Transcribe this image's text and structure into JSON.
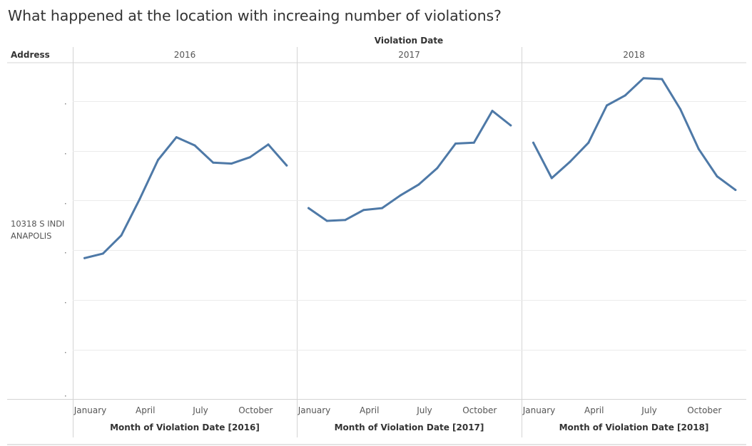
{
  "title": "What happened at the location with increaing number of violations?",
  "column_header": "Violation Date",
  "row_header": "Address",
  "row_label_lines": [
    "10318 S INDI",
    "ANAPOLIS"
  ],
  "colors": {
    "line": "#4e79a7",
    "grid": "#ebebeb",
    "divider": "#d4d4d4",
    "text": "#333333"
  },
  "chart_data": [
    {
      "type": "line",
      "panel": "2016",
      "xlabel": "Month of Violation Date [2016]",
      "tick_labels": [
        "January",
        "April",
        "July",
        "October"
      ],
      "tick_months": [
        1,
        4,
        7,
        10
      ],
      "x": [
        1,
        2,
        3,
        4,
        5,
        6,
        7,
        8,
        9,
        10,
        11,
        12
      ],
      "values": [
        29.5,
        30.0,
        32.0,
        36.0,
        40.3,
        42.8,
        41.9,
        40.0,
        39.9,
        40.6,
        42.0,
        39.7
      ],
      "ylim": [
        14,
        51
      ]
    },
    {
      "type": "line",
      "panel": "2017",
      "xlabel": "Month of Violation Date [2017]",
      "tick_labels": [
        "January",
        "April",
        "July",
        "October"
      ],
      "tick_months": [
        1,
        4,
        7,
        10
      ],
      "x": [
        1,
        2,
        3,
        4,
        5,
        6,
        7,
        8,
        9,
        10,
        11,
        12
      ],
      "values": [
        35.0,
        33.6,
        33.7,
        34.8,
        35.0,
        36.4,
        37.6,
        39.4,
        42.1,
        42.2,
        45.7,
        44.1
      ],
      "ylim": [
        14,
        51
      ]
    },
    {
      "type": "line",
      "panel": "2018",
      "xlabel": "Month of Violation Date [2018]",
      "tick_labels": [
        "January",
        "April",
        "July",
        "October"
      ],
      "tick_months": [
        1,
        4,
        7,
        10
      ],
      "x": [
        1,
        2,
        3,
        4,
        5,
        6,
        7,
        8,
        9,
        10,
        11,
        12
      ],
      "values": [
        42.2,
        38.3,
        40.1,
        42.2,
        46.3,
        47.4,
        49.3,
        49.2,
        45.9,
        41.5,
        38.5,
        37.0
      ],
      "ylim": [
        14,
        51
      ]
    }
  ]
}
